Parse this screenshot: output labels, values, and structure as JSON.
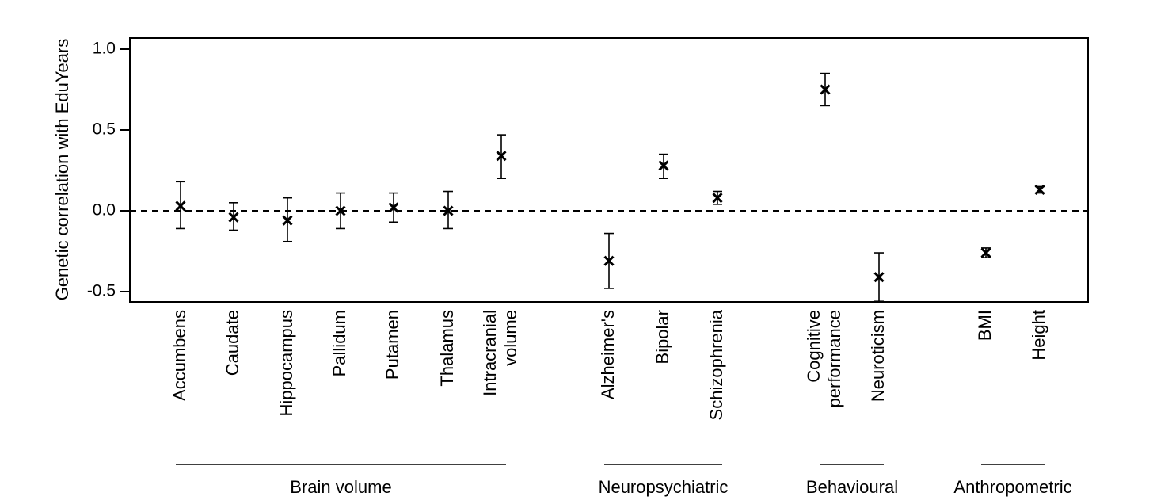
{
  "chart_data": {
    "type": "scatter",
    "ylabel": "Genetic correlation with EduYears",
    "ylim": [
      -0.56,
      1.07
    ],
    "yticks": [
      {
        "value": -0.5,
        "label": "-0.5"
      },
      {
        "value": 0.0,
        "label": "0.0"
      },
      {
        "value": 0.5,
        "label": "0.5"
      },
      {
        "value": 1.0,
        "label": "1.0"
      }
    ],
    "reference_line": {
      "value": 0.0,
      "style": "dashed"
    },
    "marker": "x",
    "points": [
      {
        "label": [
          "Accumbens"
        ],
        "y": 0.03,
        "lo": -0.11,
        "hi": 0.18
      },
      {
        "label": [
          "Caudate"
        ],
        "y": -0.04,
        "lo": -0.12,
        "hi": 0.05
      },
      {
        "label": [
          "Hippocampus"
        ],
        "y": -0.06,
        "lo": -0.19,
        "hi": 0.08
      },
      {
        "label": [
          "Pallidum"
        ],
        "y": 0.0,
        "lo": -0.11,
        "hi": 0.11
      },
      {
        "label": [
          "Putamen"
        ],
        "y": 0.02,
        "lo": -0.07,
        "hi": 0.11
      },
      {
        "label": [
          "Thalamus"
        ],
        "y": 0.0,
        "lo": -0.11,
        "hi": 0.12
      },
      {
        "label": [
          "Intracranial",
          "volume"
        ],
        "y": 0.34,
        "lo": 0.2,
        "hi": 0.47
      },
      {
        "label": [
          "Alzheimer's"
        ],
        "y": -0.31,
        "lo": -0.48,
        "hi": -0.14
      },
      {
        "label": [
          "Bipolar"
        ],
        "y": 0.28,
        "lo": 0.2,
        "hi": 0.35
      },
      {
        "label": [
          "Schizophrenia"
        ],
        "y": 0.08,
        "lo": 0.04,
        "hi": 0.12
      },
      {
        "label": [
          "Cognitive",
          "performance"
        ],
        "y": 0.75,
        "lo": 0.65,
        "hi": 0.85
      },
      {
        "label": [
          "Neuroticism"
        ],
        "y": -0.41,
        "lo": -0.56,
        "hi": -0.26
      },
      {
        "label": [
          "BMI"
        ],
        "y": -0.26,
        "lo": -0.29,
        "hi": -0.23
      },
      {
        "label": [
          "Height"
        ],
        "y": 0.13,
        "lo": 0.11,
        "hi": 0.15
      }
    ],
    "groups": [
      {
        "name": "Brain volume",
        "first": 0,
        "last": 6
      },
      {
        "name": "Neuropsychiatric",
        "first": 7,
        "last": 9
      },
      {
        "name": "Behavioural",
        "first": 10,
        "last": 11
      },
      {
        "name": "Anthropometric",
        "first": 12,
        "last": 13
      }
    ],
    "grid": false,
    "legend": "none"
  }
}
